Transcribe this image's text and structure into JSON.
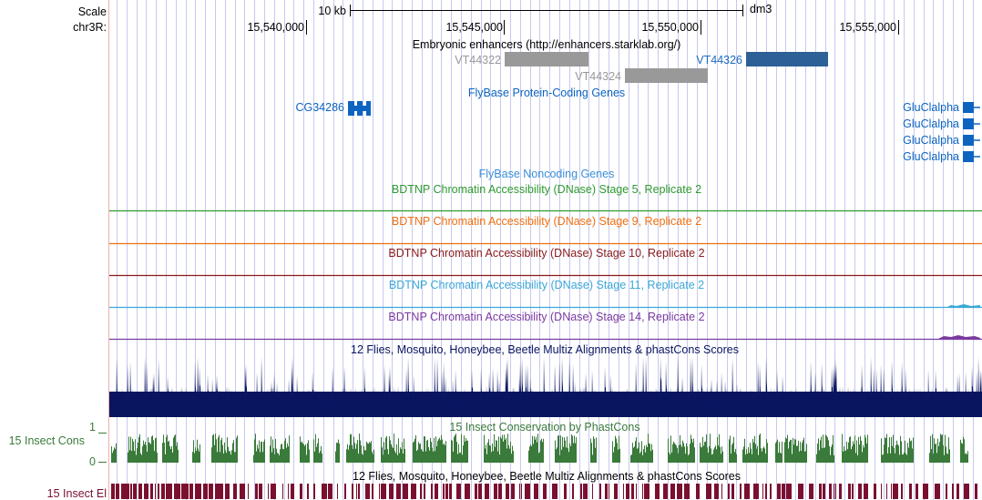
{
  "scale": {
    "label": "Scale",
    "bar_label": "10 kb",
    "assembly": "dm3"
  },
  "position": {
    "chrom_label": "chr3R:",
    "ticks": [
      "15,540,000",
      "15,545,000",
      "15,550,000",
      "15,555,000"
    ]
  },
  "colors": {
    "gridline": "#c8c8f0",
    "left_margin_line": "#f0b0b0",
    "enhancer_gray": "#999999",
    "enhancer_blue": "#2d6096",
    "flybase_blue": "#0d64c0",
    "noncoding_blue": "#3a8fd8",
    "stage5": "#2f9a2f",
    "stage9": "#f07010",
    "stage10": "#8b1a1a",
    "stage11": "#3aa8d8",
    "stage14": "#7a3aa0",
    "multiz": "#0a1560",
    "phastcons": "#3a7a3a",
    "elements": "#7a1030"
  },
  "tracks": {
    "enhancers": {
      "title": "Embryonic enhancers (http://enhancers.starklab.org/)",
      "items": [
        {
          "label": "VT44322",
          "color": "gray"
        },
        {
          "label": "VT44324",
          "color": "gray"
        },
        {
          "label": "VT44326",
          "color": "blue"
        }
      ]
    },
    "flybase_coding": {
      "title": "FlyBase Protein-Coding Genes",
      "genes": [
        "CG34286",
        "GluClalpha",
        "GluClalpha",
        "GluClalpha",
        "GluClalpha"
      ]
    },
    "flybase_noncoding": {
      "title": "FlyBase Noncoding Genes"
    },
    "dnase": [
      {
        "title": "BDTNP Chromatin Accessibility (DNase) Stage 5, Replicate 2"
      },
      {
        "title": "BDTNP Chromatin Accessibility (DNase) Stage 9, Replicate 2"
      },
      {
        "title": "BDTNP Chromatin Accessibility (DNase) Stage 10, Replicate 2"
      },
      {
        "title": "BDTNP Chromatin Accessibility (DNase) Stage 11, Replicate 2"
      },
      {
        "title": "BDTNP Chromatin Accessibility (DNase) Stage 14, Replicate 2"
      }
    ],
    "multiz": {
      "title": "12 Flies, Mosquito, Honeybee, Beetle Multiz Alignments & phastCons Scores"
    },
    "phastcons": {
      "title": "15 Insect Conservation by PhastCons",
      "side_label": "15 Insect Cons",
      "y_max": "1",
      "y_min": "0"
    },
    "elements": {
      "title": "12 Flies, Mosquito, Honeybee, Beetle Multiz Alignments & phastCons Scores",
      "side_label": "15 Insect El"
    }
  }
}
